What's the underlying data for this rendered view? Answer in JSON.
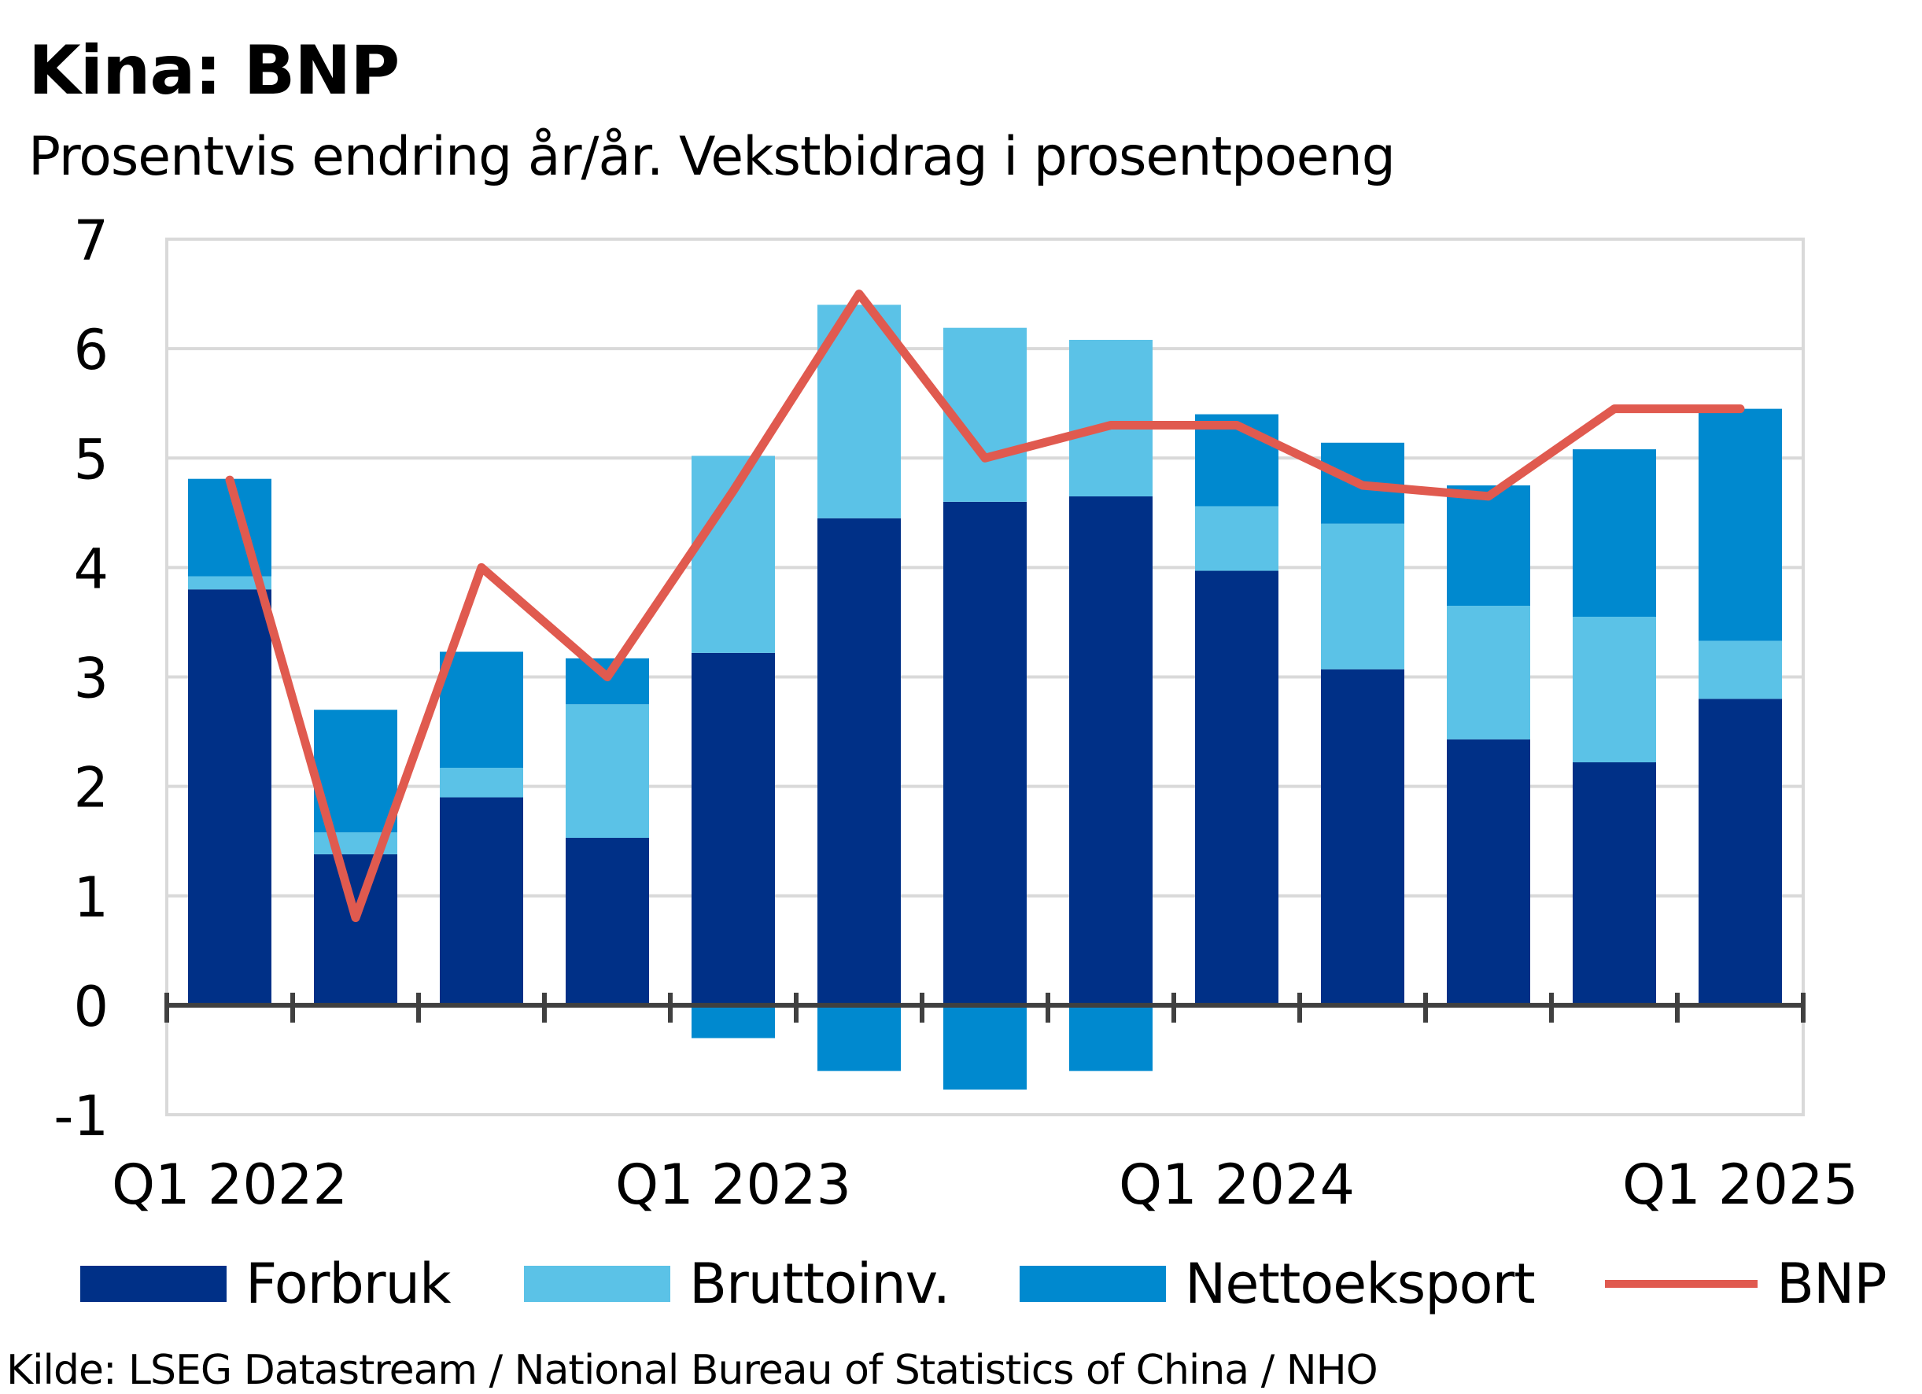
{
  "title": "Kina: BNP",
  "subtitle": "Prosentvis endring år/år. Vekstbidrag i prosentpoeng",
  "source": "Kilde: LSEG Datastream / National Bureau of Statistics of China / NHO",
  "colors": {
    "forbruk": "#003087",
    "bruttoinv": "#5bc2e7",
    "nettoeksport": "#0089cf",
    "bnp": "#e05a4f",
    "grid": "#d9d9d9",
    "axis": "#404040"
  },
  "legend": [
    {
      "key": "forbruk",
      "label": "Forbruk",
      "kind": "bar"
    },
    {
      "key": "bruttoinv",
      "label": "Bruttoinv.",
      "kind": "bar"
    },
    {
      "key": "nettoeksport",
      "label": "Nettoeksport",
      "kind": "bar"
    },
    {
      "key": "bnp",
      "label": "BNP",
      "kind": "line"
    }
  ],
  "chart_data": {
    "type": "bar",
    "stacked": true,
    "categories": [
      "Q1 2022",
      "Q2 2022",
      "Q3 2022",
      "Q4 2022",
      "Q1 2023",
      "Q2 2023",
      "Q3 2023",
      "Q4 2023",
      "Q1 2024",
      "Q2 2024",
      "Q3 2024",
      "Q4 2024",
      "Q1 2025"
    ],
    "x_tick_labels": [
      "Q1 2022",
      "Q1 2023",
      "Q1 2024",
      "Q1 2025"
    ],
    "x_tick_label_indices": [
      0,
      4,
      8,
      12
    ],
    "y_ticks": [
      "7",
      "6",
      "5",
      "4",
      "3",
      "2",
      "1",
      "0",
      "-1"
    ],
    "ylim": [
      -1,
      7
    ],
    "grid": true,
    "legend_position": "bottom",
    "series": [
      {
        "key": "forbruk",
        "name": "Forbruk",
        "kind": "bar",
        "values": [
          3.8,
          1.38,
          1.9,
          1.53,
          3.22,
          4.45,
          4.6,
          4.65,
          3.97,
          3.07,
          2.43,
          2.22,
          2.8
        ]
      },
      {
        "key": "bruttoinv",
        "name": "Bruttoinv.",
        "kind": "bar",
        "values": [
          0.12,
          0.2,
          0.27,
          1.22,
          1.8,
          1.95,
          1.59,
          1.43,
          0.59,
          1.33,
          1.22,
          1.33,
          0.53
        ]
      },
      {
        "key": "nettoeksport",
        "name": "Nettoeksport",
        "kind": "bar",
        "values": [
          0.89,
          1.12,
          1.06,
          0.42,
          -0.3,
          -0.6,
          -0.77,
          -0.6,
          0.84,
          0.74,
          1.1,
          1.53,
          2.12
        ]
      },
      {
        "key": "bnp",
        "name": "BNP",
        "kind": "line",
        "values": [
          4.8,
          0.8,
          4.0,
          3.0,
          4.7,
          6.5,
          5.0,
          5.3,
          5.3,
          4.75,
          4.65,
          5.45,
          5.45
        ]
      }
    ]
  }
}
